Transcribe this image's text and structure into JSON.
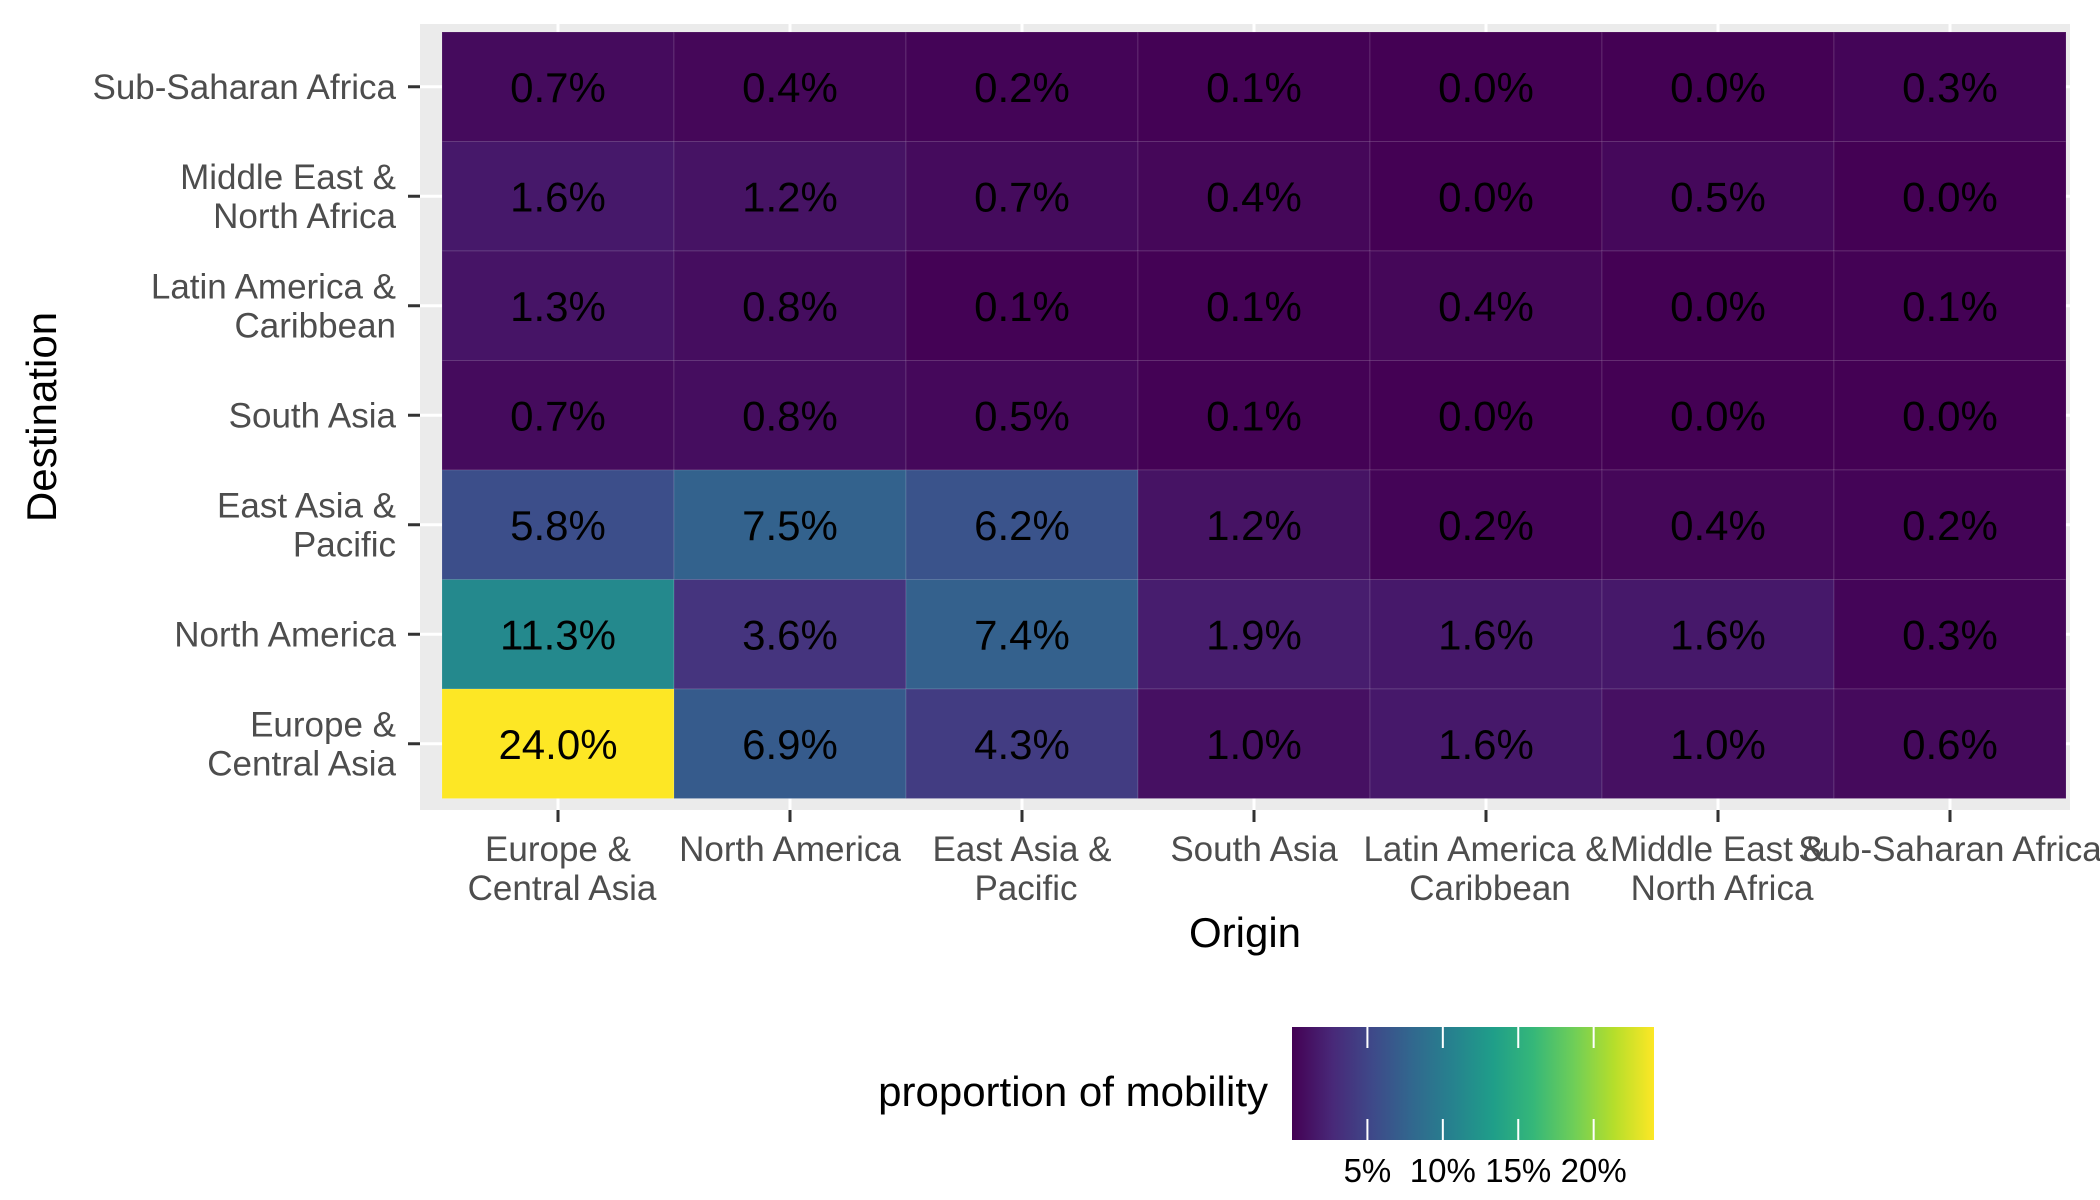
{
  "chart_data": {
    "type": "heatmap",
    "xlabel": "Origin",
    "ylabel": "Destination",
    "x_categories": [
      [
        "Europe &",
        "Central Asia"
      ],
      [
        "North America"
      ],
      [
        "East Asia &",
        "Pacific"
      ],
      [
        "South Asia"
      ],
      [
        "Latin America &",
        "Caribbean"
      ],
      [
        "Middle East &",
        "North Africa"
      ],
      [
        "Sub-Saharan Africa"
      ]
    ],
    "y_categories": [
      [
        "Sub-Saharan Africa"
      ],
      [
        "Middle East &",
        "North Africa"
      ],
      [
        "Latin America &",
        "Caribbean"
      ],
      [
        "South Asia"
      ],
      [
        "East Asia &",
        "Pacific"
      ],
      [
        "North America"
      ],
      [
        "Europe &",
        "Central Asia"
      ]
    ],
    "values": [
      [
        0.7,
        0.4,
        0.2,
        0.1,
        0.0,
        0.0,
        0.3
      ],
      [
        1.6,
        1.2,
        0.7,
        0.4,
        0.0,
        0.5,
        0.0
      ],
      [
        1.3,
        0.8,
        0.1,
        0.1,
        0.4,
        0.0,
        0.1
      ],
      [
        0.7,
        0.8,
        0.5,
        0.1,
        0.0,
        0.0,
        0.0
      ],
      [
        5.8,
        7.5,
        6.2,
        1.2,
        0.2,
        0.4,
        0.2
      ],
      [
        11.3,
        3.6,
        7.4,
        1.9,
        1.6,
        1.6,
        0.3
      ],
      [
        24.0,
        6.9,
        4.3,
        1.0,
        1.6,
        1.0,
        0.6
      ]
    ],
    "cell_labels": [
      [
        "0.7%",
        "0.4%",
        "0.2%",
        "0.1%",
        "0.0%",
        "0.0%",
        "0.3%"
      ],
      [
        "1.6%",
        "1.2%",
        "0.7%",
        "0.4%",
        "0.0%",
        "0.5%",
        "0.0%"
      ],
      [
        "1.3%",
        "0.8%",
        "0.1%",
        "0.1%",
        "0.4%",
        "0.0%",
        "0.1%"
      ],
      [
        "0.7%",
        "0.8%",
        "0.5%",
        "0.1%",
        "0.0%",
        "0.0%",
        "0.0%"
      ],
      [
        "5.8%",
        "7.5%",
        "6.2%",
        "1.2%",
        "0.2%",
        "0.4%",
        "0.2%"
      ],
      [
        "11.3%",
        "3.6%",
        "7.4%",
        "1.9%",
        "1.6%",
        "1.6%",
        "0.3%"
      ],
      [
        "24.0%",
        "6.9%",
        "4.3%",
        "1.0%",
        "1.6%",
        "1.0%",
        "0.6%"
      ]
    ],
    "legend": {
      "title": "proportion of mobility",
      "placement": "bottom",
      "scale": "viridis",
      "range": [
        0,
        24.0
      ],
      "ticks": [
        5,
        10,
        15,
        20
      ],
      "tick_labels": [
        "5%",
        "10%",
        "15%",
        "20%"
      ]
    },
    "grid": true,
    "colors": {
      "panel_background": "#ebebeb",
      "viridis_low": "#440154",
      "viridis_high": "#fde725"
    }
  }
}
